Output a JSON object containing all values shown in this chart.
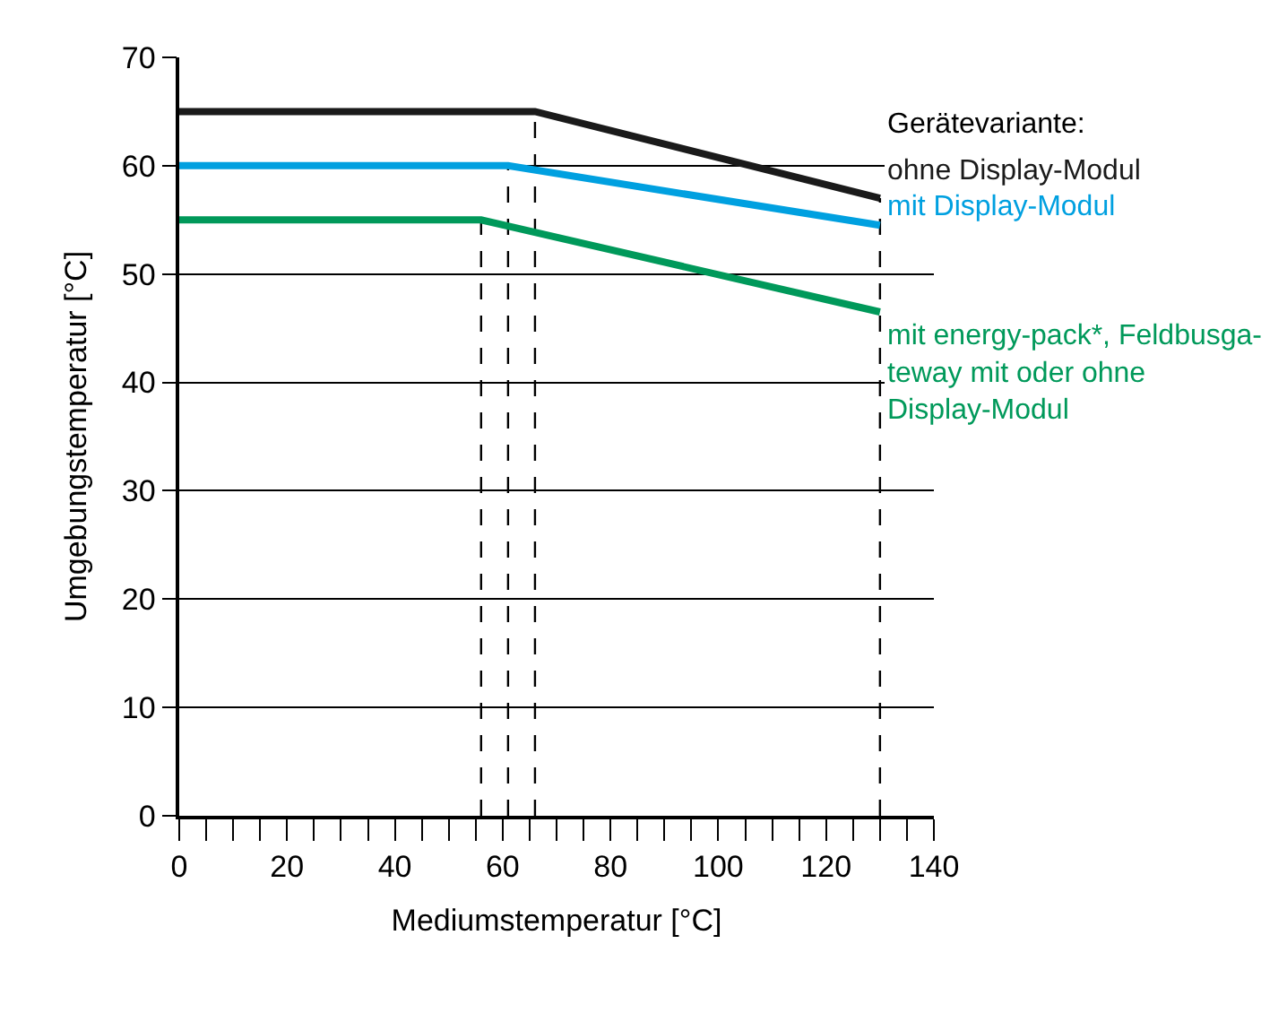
{
  "chart_data": {
    "type": "line",
    "xlabel": "Mediumstemperatur [°C]",
    "ylabel": "Umgebungstemperatur [°C]",
    "legend_title": "Gerätevariante:",
    "series": [
      {
        "name": "ohne Display-Modul",
        "color": "#1a1a1a",
        "x": [
          0,
          66,
          130
        ],
        "values": [
          65,
          65,
          57
        ]
      },
      {
        "name": "mit Display-Modul",
        "color": "#00a0e0",
        "x": [
          0,
          61,
          130
        ],
        "values": [
          60,
          60,
          54.5
        ]
      },
      {
        "name": "mit energy-pack*, Feldbusga-\nteway mit oder ohne\nDisplay-Modul",
        "color": "#00995a",
        "x": [
          0,
          56,
          130
        ],
        "values": [
          55,
          55,
          46.5
        ]
      }
    ],
    "xlim": [
      0,
      140
    ],
    "xticks": [
      0,
      20,
      40,
      60,
      80,
      100,
      120,
      140
    ],
    "ylim": [
      0,
      70
    ],
    "yticks": [
      0,
      10,
      20,
      30,
      40,
      50,
      60,
      70
    ],
    "grid": "y",
    "legend": false,
    "marker": "none",
    "line_style": "solid",
    "ref_lines": [
      {
        "axis": "x",
        "value": 56,
        "color": "#000000",
        "line_style": "dashed"
      },
      {
        "axis": "x",
        "value": 61,
        "color": "#000000",
        "line_style": "dashed"
      },
      {
        "axis": "x",
        "value": 66,
        "color": "#000000",
        "line_style": "dashed"
      },
      {
        "axis": "x",
        "value": 130,
        "color": "#000000",
        "line_style": "dashed"
      }
    ]
  }
}
